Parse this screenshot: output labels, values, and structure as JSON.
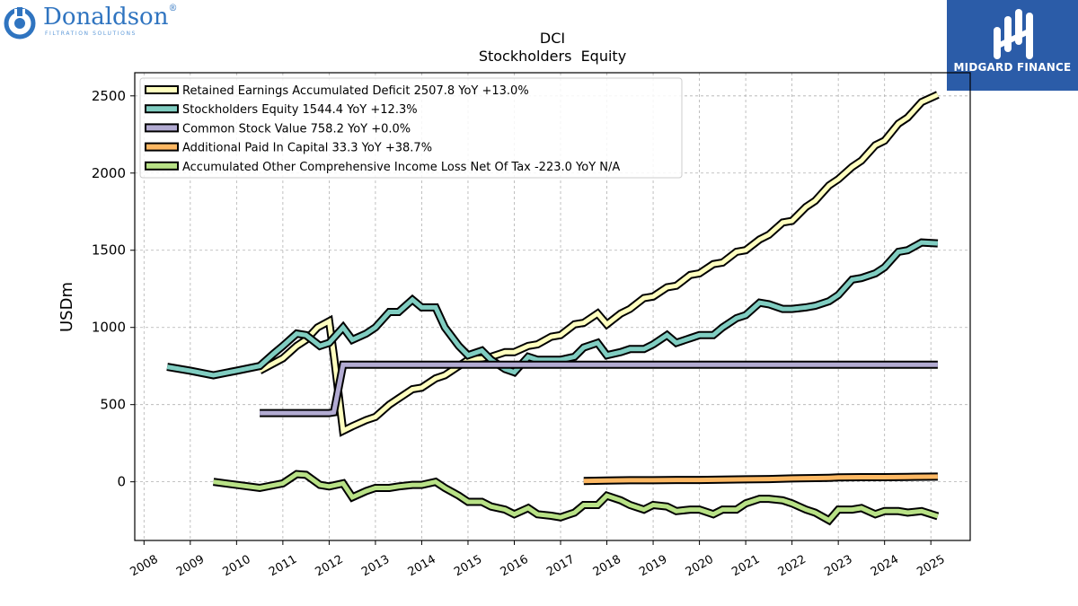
{
  "branding": {
    "left_logo_text": "Donaldson",
    "left_logo_reg": "®",
    "left_logo_sub": "FILTRATION SOLUTIONS",
    "right_logo_text": "MIDGARD FINANCE",
    "left_color": "#2f74c0",
    "right_bg": "#2b5ca8"
  },
  "chart_data": {
    "type": "line",
    "title": "DCI",
    "subtitle": "Stockholders  Equity",
    "ylabel": "USDm",
    "xlabel": "",
    "xlim": [
      2007.8,
      2025.85
    ],
    "ylim": [
      -380,
      2650
    ],
    "x_ticks": [
      2008,
      2009,
      2010,
      2011,
      2012,
      2013,
      2014,
      2015,
      2016,
      2017,
      2018,
      2019,
      2020,
      2021,
      2022,
      2023,
      2024,
      2025
    ],
    "x_tick_labels": [
      "2008",
      "2009",
      "2010",
      "2011",
      "2012",
      "2013",
      "2014",
      "2015",
      "2016",
      "2017",
      "2018",
      "2019",
      "2020",
      "2021",
      "2022",
      "2023",
      "2024",
      "2025"
    ],
    "y_ticks": [
      0,
      500,
      1000,
      1500,
      2000,
      2500
    ],
    "y_tick_labels": [
      "0",
      "500",
      "1000",
      "1500",
      "2000",
      "2500"
    ],
    "grid": true,
    "legend_position": "top-left",
    "series": [
      {
        "name": "Retained Earnings Accumulated Deficit  2507.8 YoY +13.0%",
        "color": "#ffffbf",
        "x": [
          2010.5,
          2011.0,
          2011.3,
          2011.5,
          2011.75,
          2012.0,
          2012.1,
          2012.3,
          2012.5,
          2012.8,
          2013.0,
          2013.3,
          2013.5,
          2013.8,
          2014.0,
          2014.3,
          2014.5,
          2014.8,
          2015.0,
          2015.3,
          2015.5,
          2015.8,
          2016.0,
          2016.3,
          2016.5,
          2016.8,
          2017.0,
          2017.3,
          2017.5,
          2017.8,
          2018.0,
          2018.3,
          2018.5,
          2018.8,
          2019.0,
          2019.3,
          2019.5,
          2019.8,
          2020.0,
          2020.3,
          2020.5,
          2020.8,
          2021.0,
          2021.3,
          2021.5,
          2021.8,
          2022.0,
          2022.3,
          2022.5,
          2022.8,
          2023.0,
          2023.3,
          2023.5,
          2023.8,
          2024.0,
          2024.3,
          2024.5,
          2024.8,
          2025.15
        ],
        "y": [
          720,
          800,
          880,
          920,
          1000,
          1040,
          820,
          330,
          360,
          400,
          420,
          500,
          540,
          600,
          610,
          670,
          690,
          750,
          790,
          800,
          810,
          840,
          840,
          880,
          890,
          940,
          950,
          1020,
          1030,
          1090,
          1020,
          1090,
          1120,
          1190,
          1200,
          1260,
          1270,
          1340,
          1350,
          1410,
          1420,
          1490,
          1500,
          1570,
          1600,
          1680,
          1690,
          1780,
          1820,
          1920,
          1960,
          2040,
          2080,
          2180,
          2210,
          2320,
          2360,
          2460,
          2507.8
        ]
      },
      {
        "name": "Stockholders Equity  1544.4 YoY +12.3%",
        "color": "#80cdc1",
        "x": [
          2008.5,
          2009.0,
          2009.5,
          2010.0,
          2010.5,
          2010.8,
          2011.0,
          2011.3,
          2011.5,
          2011.8,
          2012.0,
          2012.3,
          2012.5,
          2012.8,
          2013.0,
          2013.3,
          2013.5,
          2013.8,
          2014.0,
          2014.3,
          2014.5,
          2014.8,
          2015.0,
          2015.3,
          2015.5,
          2015.8,
          2016.0,
          2016.3,
          2016.5,
          2016.8,
          2017.0,
          2017.3,
          2017.5,
          2017.8,
          2018.0,
          2018.3,
          2018.5,
          2018.8,
          2019.0,
          2019.3,
          2019.5,
          2019.8,
          2020.0,
          2020.3,
          2020.5,
          2020.8,
          2021.0,
          2021.3,
          2021.5,
          2021.8,
          2022.0,
          2022.3,
          2022.5,
          2022.8,
          2023.0,
          2023.3,
          2023.5,
          2023.8,
          2024.0,
          2024.3,
          2024.5,
          2024.8,
          2025.15
        ],
        "y": [
          745,
          720,
          690,
          720,
          750,
          830,
          880,
          960,
          950,
          880,
          900,
          1000,
          920,
          960,
          1000,
          1100,
          1100,
          1180,
          1130,
          1130,
          1000,
          880,
          820,
          850,
          790,
          730,
          710,
          810,
          790,
          790,
          790,
          810,
          870,
          900,
          820,
          840,
          860,
          860,
          890,
          950,
          900,
          930,
          950,
          950,
          1000,
          1060,
          1080,
          1160,
          1150,
          1120,
          1120,
          1130,
          1140,
          1170,
          1210,
          1310,
          1320,
          1350,
          1390,
          1490,
          1500,
          1550,
          1544.4
        ]
      },
      {
        "name": "Common Stock Value  758.2 YoY +0.0%",
        "color": "#b2abd2",
        "x": [
          2010.5,
          2011.0,
          2011.5,
          2012.0,
          2012.1,
          2012.3,
          2013.0,
          2014.0,
          2015.0,
          2016.0,
          2017.0,
          2018.0,
          2019.0,
          2020.0,
          2021.0,
          2022.0,
          2023.0,
          2024.0,
          2025.15
        ],
        "y": [
          445,
          445,
          445,
          445,
          450,
          758.2,
          758.2,
          758.2,
          758.2,
          758.2,
          758.2,
          758.2,
          758.2,
          758.2,
          758.2,
          758.2,
          758.2,
          758.2,
          758.2
        ]
      },
      {
        "name": "Additional Paid In Capital  33.3 YoY +38.7%",
        "color": "#fdb863",
        "x": [
          2017.5,
          2018.0,
          2018.5,
          2019.0,
          2019.5,
          2020.0,
          2020.5,
          2021.0,
          2021.5,
          2022.0,
          2022.5,
          2022.8,
          2023.0,
          2023.5,
          2024.0,
          2024.5,
          2025.15
        ],
        "y": [
          5,
          8,
          10,
          10,
          12,
          12,
          14,
          16,
          18,
          22,
          24,
          26,
          28,
          30,
          30,
          32,
          33.3
        ]
      },
      {
        "name": "Accumulated Other Comprehensive Income Loss Net Of Tax  -223.0 YoY N/A",
        "color": "#b8e186",
        "x": [
          2009.5,
          2010.0,
          2010.5,
          2011.0,
          2011.3,
          2011.5,
          2011.8,
          2012.0,
          2012.3,
          2012.5,
          2012.8,
          2013.0,
          2013.3,
          2013.5,
          2013.8,
          2014.0,
          2014.3,
          2014.5,
          2014.8,
          2015.0,
          2015.3,
          2015.5,
          2015.8,
          2016.0,
          2016.3,
          2016.5,
          2016.8,
          2017.0,
          2017.3,
          2017.5,
          2017.8,
          2018.0,
          2018.3,
          2018.5,
          2018.8,
          2019.0,
          2019.3,
          2019.5,
          2019.8,
          2020.0,
          2020.3,
          2020.5,
          2020.8,
          2021.0,
          2021.3,
          2021.5,
          2021.8,
          2022.0,
          2022.3,
          2022.5,
          2022.8,
          2023.0,
          2023.3,
          2023.5,
          2023.8,
          2024.0,
          2024.3,
          2024.5,
          2024.8,
          2025.15
        ],
        "y": [
          0,
          -20,
          -40,
          -10,
          50,
          45,
          -20,
          -30,
          -10,
          -100,
          -60,
          -40,
          -40,
          -30,
          -20,
          -20,
          0,
          -40,
          -90,
          -130,
          -130,
          -160,
          -180,
          -210,
          -170,
          -210,
          -220,
          -230,
          -200,
          -150,
          -150,
          -90,
          -120,
          -150,
          -180,
          -150,
          -160,
          -190,
          -180,
          -180,
          -210,
          -180,
          -180,
          -140,
          -110,
          -110,
          -120,
          -140,
          -180,
          -200,
          -250,
          -180,
          -180,
          -170,
          -210,
          -190,
          -190,
          -200,
          -190,
          -223.0
        ]
      }
    ]
  }
}
